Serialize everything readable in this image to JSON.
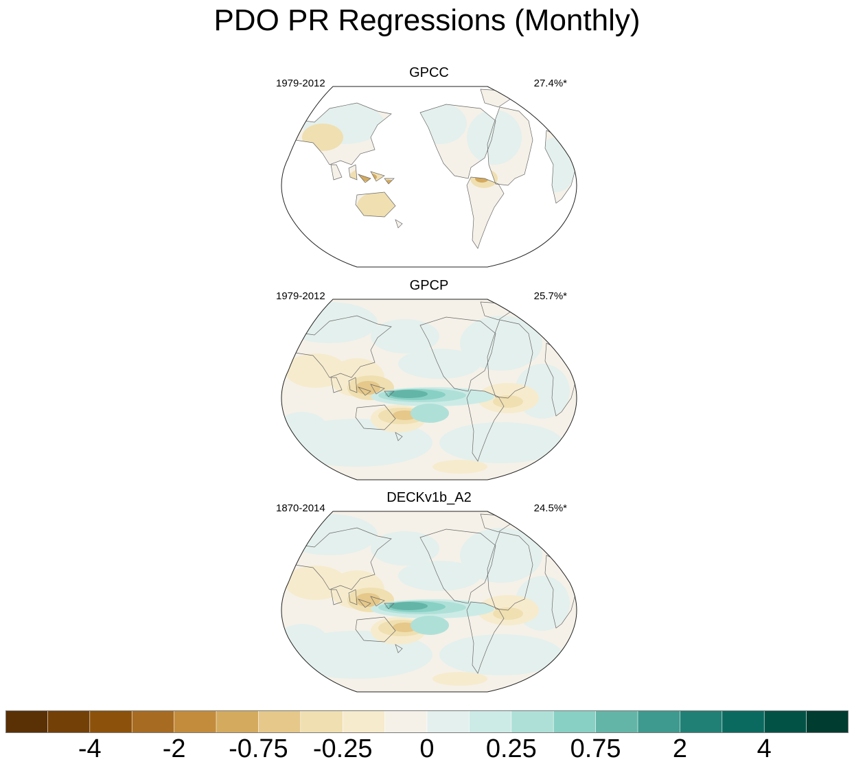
{
  "title": "PDO PR Regressions (Monthly)",
  "panels": [
    {
      "name": "GPCC",
      "period": "1979-2012",
      "variance": "27.4%*",
      "ocean_data": false
    },
    {
      "name": "GPCP",
      "period": "1979-2012",
      "variance": "25.7%*",
      "ocean_data": true
    },
    {
      "name": "DECKv1b_A2",
      "period": "1870-2014",
      "variance": "24.5%*",
      "ocean_data": true
    }
  ],
  "colorbar": {
    "colors": [
      "#5a3005",
      "#734008",
      "#8c510a",
      "#a86b22",
      "#c38c3c",
      "#d4aa5e",
      "#e5c88a",
      "#f0dfb0",
      "#f6ebcd",
      "#f5f1e8",
      "#e4f0ed",
      "#cdebe6",
      "#aee0d8",
      "#88d0c4",
      "#63b5a7",
      "#3e9a8e",
      "#218075",
      "#0b6a60",
      "#035246",
      "#003c30"
    ],
    "labels": [
      "-4",
      "-2",
      "-0.75",
      "-0.25",
      "0",
      "0.25",
      "0.75",
      "2",
      "4"
    ]
  }
}
